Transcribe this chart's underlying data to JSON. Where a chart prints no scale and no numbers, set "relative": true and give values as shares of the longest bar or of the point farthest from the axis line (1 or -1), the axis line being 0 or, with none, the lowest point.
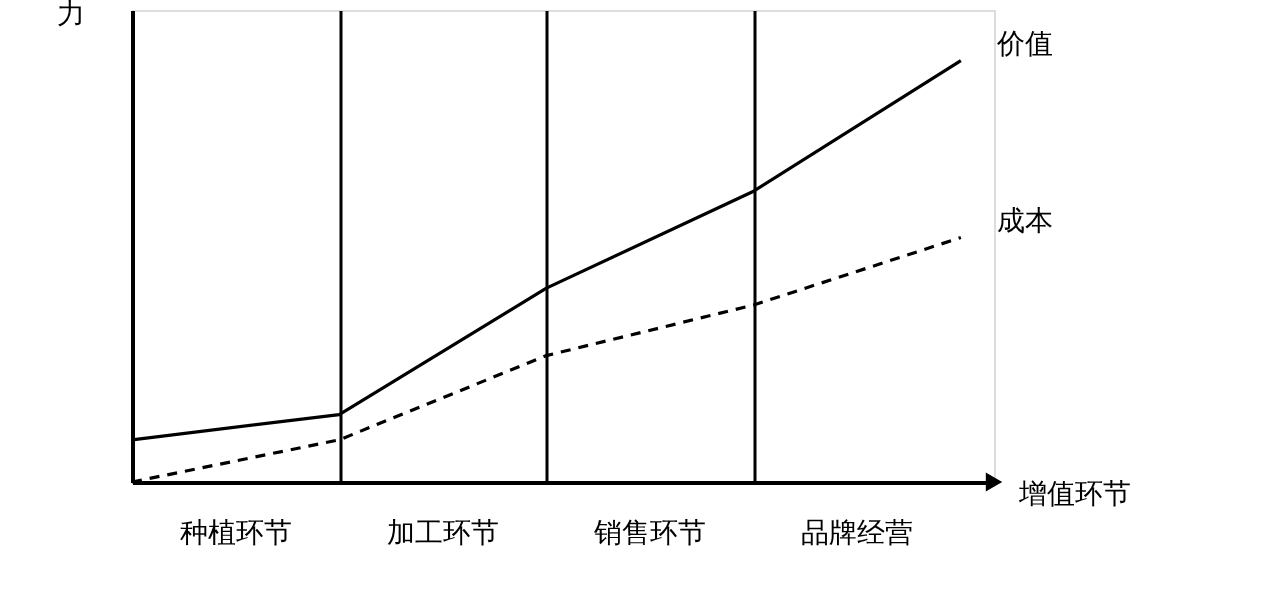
{
  "chart_data": {
    "type": "line",
    "relative": true,
    "ylabel": "力",
    "xlabel": "增值环节",
    "categories": [
      null,
      null,
      null,
      null,
      null
    ],
    "annotations": [
      "种植环节",
      "加工环节",
      "销售环节",
      "品牌经营"
    ],
    "series": [
      {
        "name": "价值",
        "color": "#000000",
        "line_style": "solid",
        "values": [
          0.1,
          0.16,
          0.46,
          0.69,
          1.0
        ]
      },
      {
        "name": "成本",
        "color": "#000000",
        "line_style": "dashed",
        "values": [
          0,
          0.1,
          0.3,
          0.42,
          0.58
        ]
      }
    ],
    "grid": "x",
    "legend": false,
    "marker": "none"
  }
}
